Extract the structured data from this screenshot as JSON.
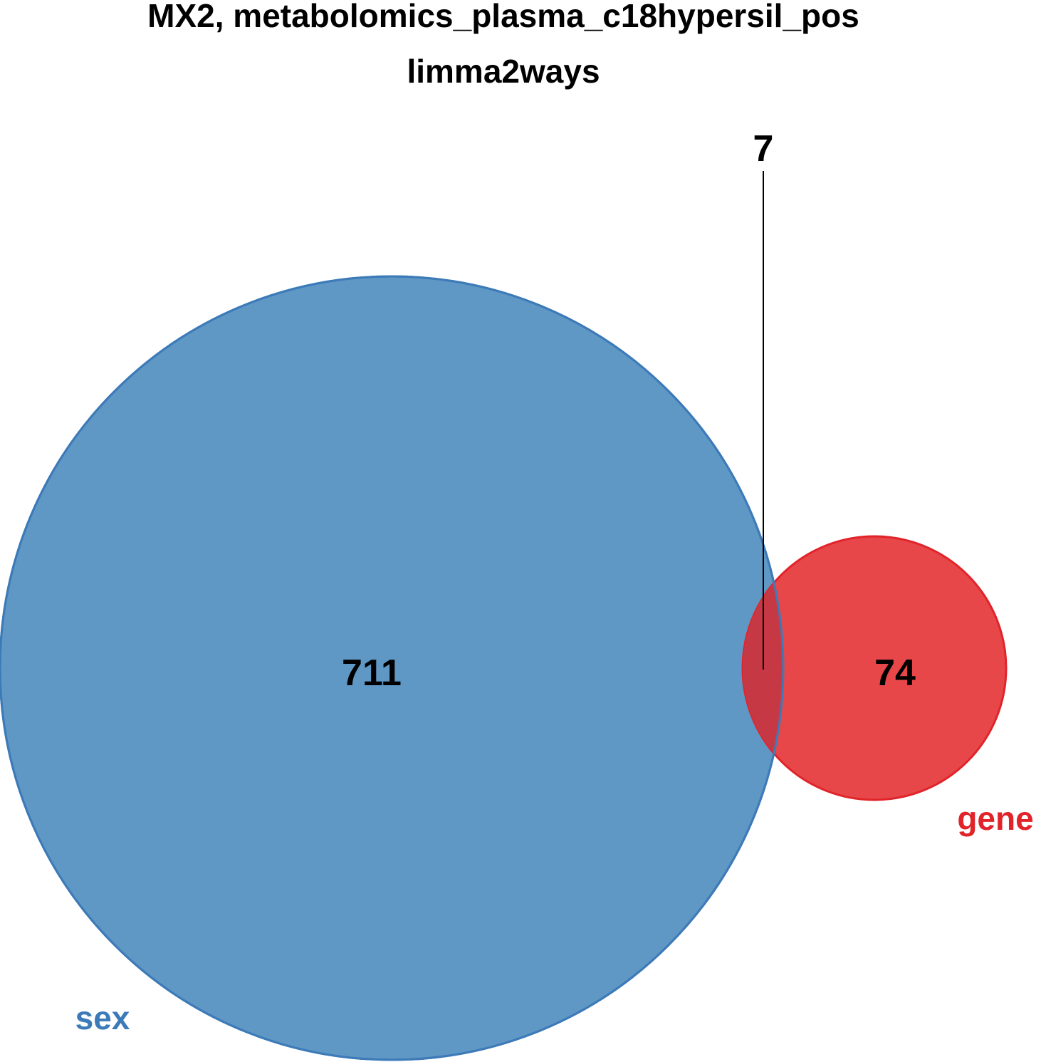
{
  "title_line1": "MX2, metabolomics_plasma_c18hypersil_pos",
  "title_line2": "limma2ways",
  "sets": [
    {
      "name": "sex",
      "only_count": "711",
      "fill": "#5f97c5",
      "stroke": "#3c7ab8",
      "label_color": "#3c7ab8"
    },
    {
      "name": "gene",
      "only_count": "74",
      "fill": "#e8474a",
      "stroke": "#e0242a",
      "label_color": "#e0242a"
    }
  ],
  "intersection": {
    "sets": [
      "sex",
      "gene"
    ],
    "count": "7",
    "fill": "#c63944"
  },
  "colors": {
    "background": "#ffffff",
    "text": "#000000",
    "leader_line": "#000000"
  }
}
